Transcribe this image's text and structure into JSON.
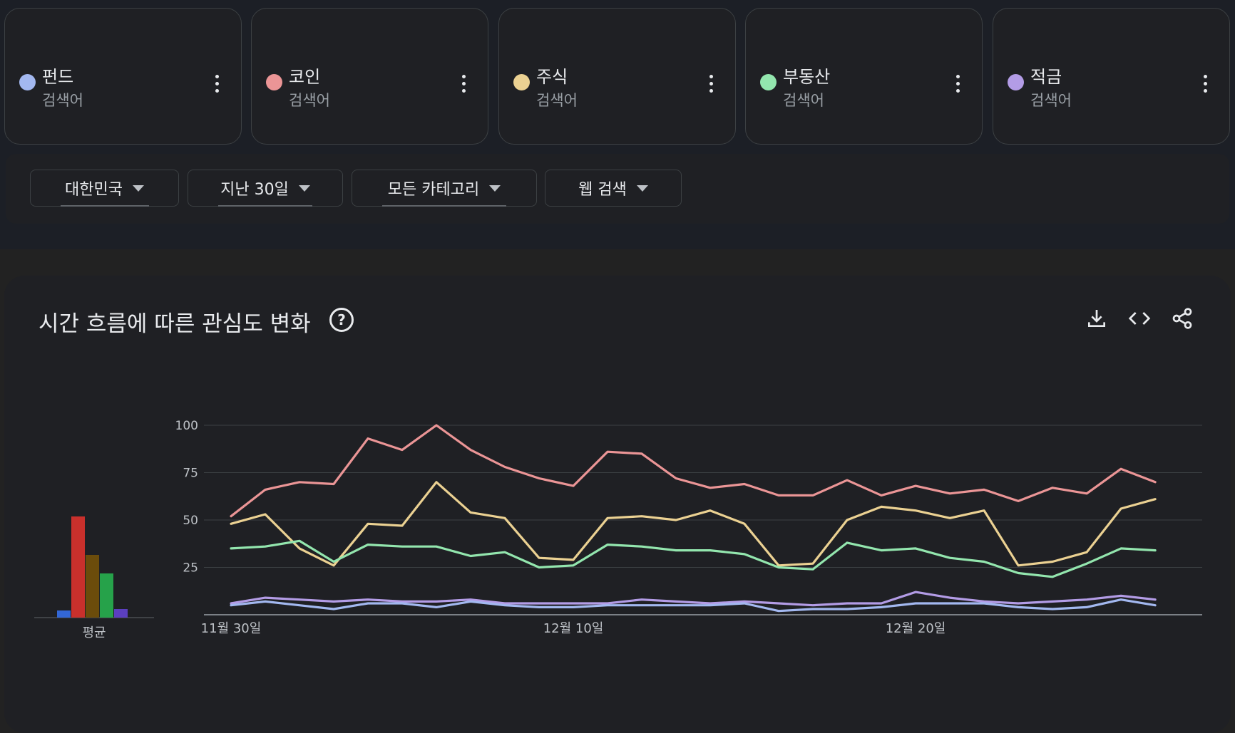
{
  "terms": [
    {
      "name": "펀드",
      "type": "검색어",
      "color": "#a3b8f0"
    },
    {
      "name": "코인",
      "type": "검색어",
      "color": "#eb9596"
    },
    {
      "name": "주식",
      "type": "검색어",
      "color": "#ebd192"
    },
    {
      "name": "부동산",
      "type": "검색어",
      "color": "#93e6ae"
    },
    {
      "name": "적금",
      "type": "검색어",
      "color": "#b39ce6"
    }
  ],
  "filters": {
    "region": "대한민국",
    "period": "지난 30일",
    "category": "모든 카테고리",
    "search_type": "웹 검색"
  },
  "chart_title": "시간 흐름에 따른 관심도 변화",
  "help_glyph": "?",
  "chart_data": [
    {
      "type": "bar",
      "categories": [
        "평균"
      ],
      "xlabel": "평균",
      "series": [
        {
          "name": "펀드",
          "values": [
            5
          ],
          "color": "#3367d6"
        },
        {
          "name": "코인",
          "values": [
            71
          ],
          "color": "#c9302c"
        },
        {
          "name": "주식",
          "values": [
            44
          ],
          "color": "#6b4c0b"
        },
        {
          "name": "부동산",
          "values": [
            31
          ],
          "color": "#26a24a"
        },
        {
          "name": "적금",
          "values": [
            6
          ],
          "color": "#5b3fbf"
        }
      ],
      "ylim": [
        0,
        100
      ]
    },
    {
      "type": "line",
      "x": [
        "11월 30일",
        "12월 1일",
        "12월 2일",
        "12월 3일",
        "12월 4일",
        "12월 5일",
        "12월 6일",
        "12월 7일",
        "12월 8일",
        "12월 9일",
        "12월 10일",
        "12월 11일",
        "12월 12일",
        "12월 13일",
        "12월 14일",
        "12월 15일",
        "12월 16일",
        "12월 17일",
        "12월 18일",
        "12월 19일",
        "12월 20일",
        "12월 21일",
        "12월 22일",
        "12월 23일",
        "12월 24일",
        "12월 25일",
        "12월 26일",
        "12월 27일",
        "12월 28일",
        "12월 29일"
      ],
      "x_tick_labels": [
        "11월 30일",
        "12월 10일",
        "12월 20일"
      ],
      "y_tick_labels": [
        "100",
        "75",
        "50",
        "25"
      ],
      "ylim": [
        0,
        100
      ],
      "grid": true,
      "series": [
        {
          "name": "코인",
          "color": "#eb9596",
          "values": [
            52,
            66,
            70,
            69,
            93,
            87,
            100,
            87,
            78,
            72,
            68,
            86,
            85,
            72,
            67,
            69,
            63,
            63,
            71,
            63,
            68,
            64,
            66,
            60,
            67,
            64,
            77,
            70,
            null,
            null
          ]
        },
        {
          "name": "주식",
          "color": "#ebd192",
          "values": [
            48,
            53,
            35,
            26,
            48,
            47,
            70,
            54,
            51,
            30,
            29,
            51,
            52,
            50,
            55,
            48,
            26,
            27,
            50,
            57,
            55,
            51,
            55,
            26,
            28,
            33,
            56,
            61,
            null,
            null
          ]
        },
        {
          "name": "부동산",
          "color": "#93e6ae",
          "values": [
            35,
            36,
            39,
            28,
            37,
            36,
            36,
            31,
            33,
            25,
            26,
            37,
            36,
            34,
            34,
            32,
            25,
            24,
            38,
            34,
            35,
            30,
            28,
            22,
            20,
            27,
            35,
            34,
            null,
            null
          ]
        },
        {
          "name": "적금",
          "color": "#b39ce6",
          "values": [
            6,
            9,
            8,
            7,
            8,
            7,
            7,
            8,
            6,
            6,
            6,
            6,
            8,
            7,
            6,
            7,
            6,
            5,
            6,
            6,
            12,
            9,
            7,
            6,
            7,
            8,
            10,
            8,
            null,
            null
          ]
        },
        {
          "name": "펀드",
          "color": "#a3b8f0",
          "values": [
            5,
            7,
            5,
            3,
            6,
            6,
            4,
            7,
            5,
            4,
            4,
            5,
            5,
            5,
            5,
            6,
            2,
            3,
            3,
            4,
            6,
            6,
            6,
            4,
            3,
            4,
            8,
            5,
            null,
            null
          ]
        }
      ]
    }
  ]
}
